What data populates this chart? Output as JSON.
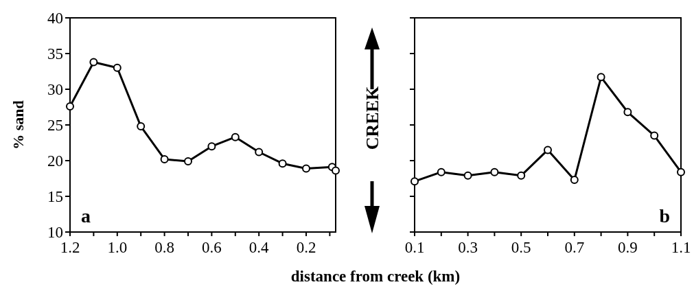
{
  "chart_data": [
    {
      "type": "line",
      "ylabel": "% sand",
      "xlabel": "distance from creek (km)",
      "x": [
        1.2,
        1.1,
        1.0,
        0.9,
        0.8,
        0.7,
        0.6,
        0.5,
        0.4,
        0.3,
        0.2,
        0.09,
        0.075
      ],
      "series": [
        {
          "color": "#000000",
          "values": [
            27.6,
            33.8,
            33.0,
            24.8,
            20.2,
            19.9,
            22.0,
            23.3,
            21.2,
            19.6,
            18.9,
            19.1,
            18.6
          ]
        }
      ],
      "xlim": [
        1.2,
        0.075
      ],
      "xticks": [
        1.2,
        {
          "value": 1.1,
          "label": null
        },
        "1.0",
        {
          "value": 0.9,
          "label": null
        },
        0.8,
        {
          "value": 0.7,
          "label": null
        },
        0.6,
        {
          "value": 0.5,
          "label": null
        },
        0.4,
        {
          "value": 0.3,
          "label": null
        },
        0.2,
        {
          "value": 0.1,
          "label": null
        }
      ],
      "ylim": [
        10,
        40
      ],
      "yticks": [
        10,
        15,
        20,
        25,
        30,
        35,
        40
      ],
      "grid": false,
      "marker": "circle",
      "line_style": "solid",
      "annotations": [
        "a"
      ]
    },
    {
      "type": "line",
      "x": [
        0.1,
        0.2,
        0.3,
        0.4,
        0.5,
        0.6,
        0.7,
        0.8,
        0.9,
        1.0,
        1.1
      ],
      "series": [
        {
          "color": "#000000",
          "values": [
            17.1,
            18.4,
            17.9,
            18.4,
            17.9,
            21.5,
            17.3,
            31.7,
            26.8,
            23.5,
            18.4
          ]
        }
      ],
      "xlim": [
        0.1,
        1.1
      ],
      "xticks": [
        0.1,
        {
          "value": 0.2,
          "label": null
        },
        0.3,
        {
          "value": 0.4,
          "label": null
        },
        0.5,
        {
          "value": 0.6,
          "label": null
        },
        0.7,
        {
          "value": 0.8,
          "label": null
        },
        0.9,
        {
          "value": 1.0,
          "label": null
        },
        1.1
      ],
      "ylim": [
        10,
        40
      ],
      "yticks": [
        10,
        15,
        20,
        25,
        30,
        35,
        40
      ],
      "tick_labels": "x",
      "grid": false,
      "marker": "circle",
      "line_style": "solid",
      "annotations": [
        "b",
        "CREEK"
      ]
    }
  ]
}
